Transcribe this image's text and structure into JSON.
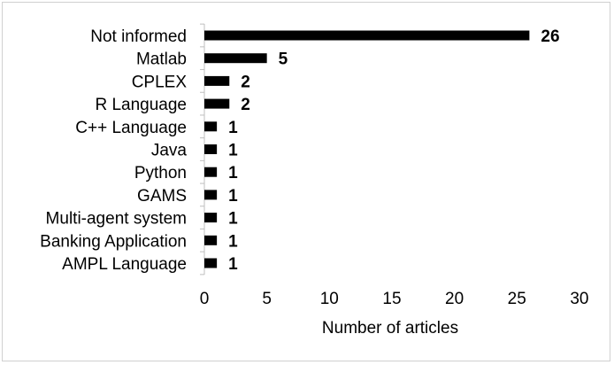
{
  "chart_data": {
    "type": "bar",
    "orientation": "horizontal",
    "categories": [
      "Not informed",
      "Matlab",
      "CPLEX",
      "R Language",
      "C++ Language",
      "Java",
      "Python",
      "GAMS",
      "Multi-agent system",
      "Banking Application",
      "AMPL Language"
    ],
    "values": [
      26,
      5,
      2,
      2,
      1,
      1,
      1,
      1,
      1,
      1,
      1
    ],
    "data_labels": [
      "26",
      "5",
      "2",
      "2",
      "1",
      "1",
      "1",
      "1",
      "1",
      "1",
      "1"
    ],
    "xlabel": "Number of articles",
    "xlim": [
      0,
      30
    ],
    "xticks": [
      "0",
      "5",
      "10",
      "15",
      "20",
      "25",
      "30"
    ],
    "grid": false,
    "bar_color": "#000000"
  }
}
